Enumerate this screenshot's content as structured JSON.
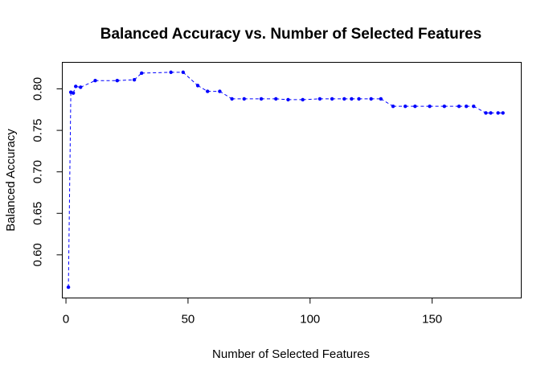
{
  "chart_data": {
    "type": "line",
    "title": "Balanced Accuracy vs. Number of Selected Features",
    "xlabel": "Number of Selected Features",
    "ylabel": "Balanced Accuracy",
    "xlim": [
      -1.5,
      186.5
    ],
    "ylim": [
      0.548,
      0.832
    ],
    "xticks": [
      0,
      50,
      100,
      150
    ],
    "yticks": [
      0.6,
      0.65,
      0.7,
      0.75,
      0.8
    ],
    "ytick_labels": [
      "0.60",
      "0.65",
      "0.70",
      "0.75",
      "0.80"
    ],
    "grid": false,
    "line_style": "dashed",
    "colors": {
      "series": "#0000ff",
      "axes": "#000000",
      "background": "#ffffff"
    },
    "series": [
      {
        "x": [
          1,
          2,
          3,
          4,
          6,
          12,
          21,
          28,
          31,
          43,
          48,
          54,
          58,
          63,
          68,
          73,
          80,
          86,
          91,
          97,
          104,
          109,
          114,
          117,
          120,
          125,
          129,
          134,
          139,
          143,
          149,
          155,
          161,
          164,
          167,
          172,
          174,
          177,
          179
        ],
        "y": [
          0.561,
          0.796,
          0.795,
          0.803,
          0.802,
          0.81,
          0.81,
          0.811,
          0.819,
          0.82,
          0.82,
          0.804,
          0.797,
          0.797,
          0.788,
          0.788,
          0.788,
          0.788,
          0.787,
          0.787,
          0.788,
          0.788,
          0.788,
          0.788,
          0.788,
          0.788,
          0.788,
          0.779,
          0.779,
          0.779,
          0.779,
          0.779,
          0.779,
          0.779,
          0.779,
          0.771,
          0.771,
          0.771,
          0.771
        ]
      }
    ]
  }
}
